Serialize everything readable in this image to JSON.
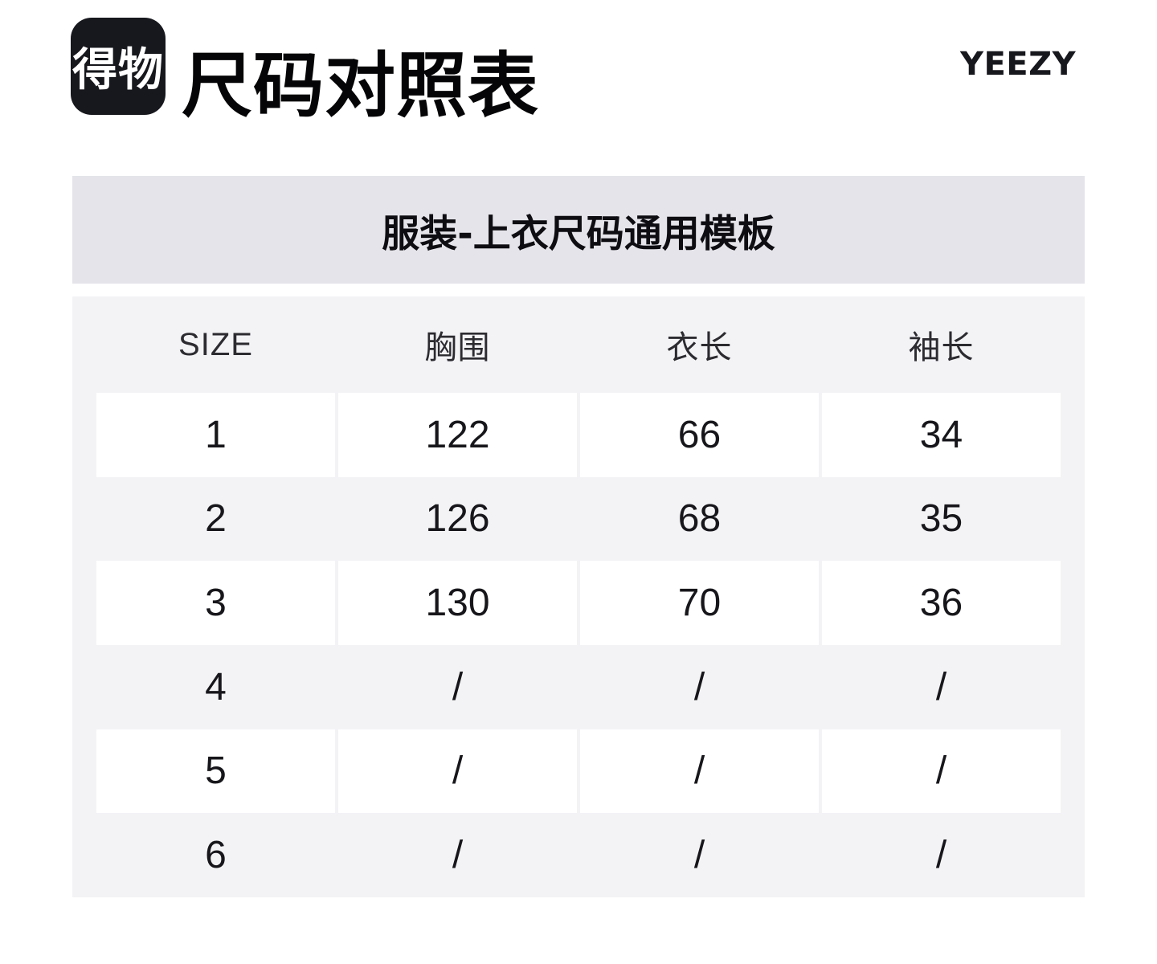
{
  "header": {
    "logo_text": "得物",
    "title": "尺码对照表",
    "brand": "YEEZY"
  },
  "banner": {
    "title": "服装-上衣尺码通用模板"
  },
  "size_table": {
    "columns": [
      "SIZE",
      "胸围",
      "衣长",
      "袖长"
    ],
    "rows": [
      [
        "1",
        "122",
        "66",
        "34"
      ],
      [
        "2",
        "126",
        "68",
        "35"
      ],
      [
        "3",
        "130",
        "70",
        "36"
      ],
      [
        "4",
        "/",
        "/",
        "/"
      ],
      [
        "5",
        "/",
        "/",
        "/"
      ],
      [
        "6",
        "/",
        "/",
        "/"
      ]
    ]
  },
  "colors": {
    "logo_bg": "#17181D",
    "banner_bg": "#E4E4EA",
    "panel_bg": "#F3F3F6",
    "cell_bg": "#FFFFFF",
    "text": "#141418"
  }
}
